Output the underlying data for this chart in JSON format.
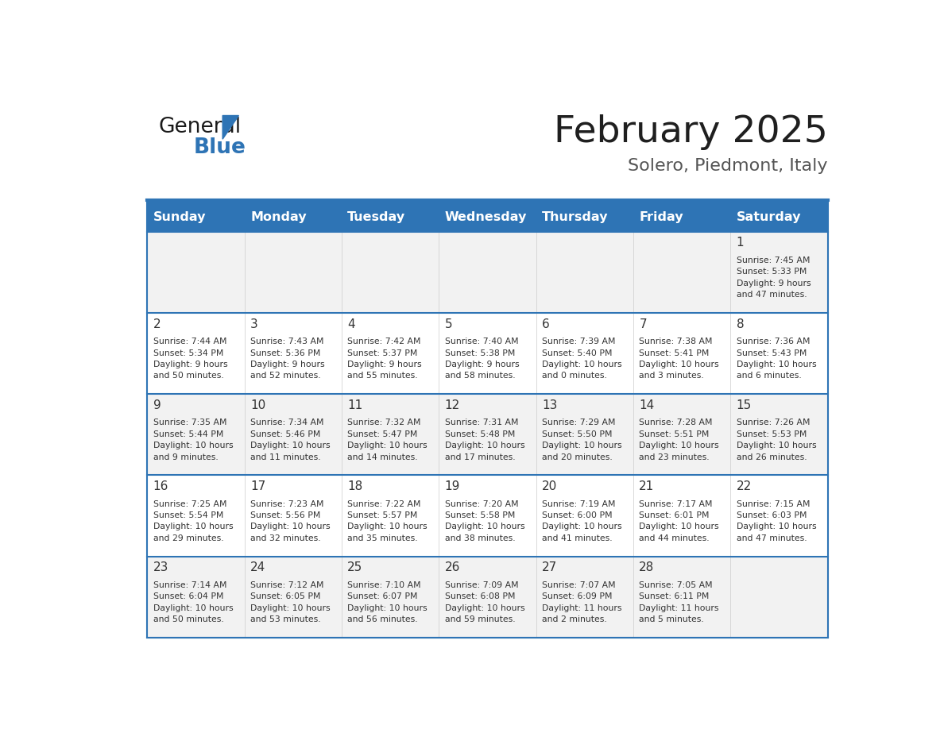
{
  "title": "February 2025",
  "subtitle": "Solero, Piedmont, Italy",
  "days_of_week": [
    "Sunday",
    "Monday",
    "Tuesday",
    "Wednesday",
    "Thursday",
    "Friday",
    "Saturday"
  ],
  "header_bg": "#2E74B5",
  "header_text": "#FFFFFF",
  "cell_bg_light": "#F2F2F2",
  "cell_bg_white": "#FFFFFF",
  "divider_color": "#2E74B5",
  "text_color": "#333333",
  "title_color": "#1F1F1F",
  "subtitle_color": "#555555",
  "calendar_data": [
    [
      {
        "day": null,
        "info": null
      },
      {
        "day": null,
        "info": null
      },
      {
        "day": null,
        "info": null
      },
      {
        "day": null,
        "info": null
      },
      {
        "day": null,
        "info": null
      },
      {
        "day": null,
        "info": null
      },
      {
        "day": 1,
        "info": "Sunrise: 7:45 AM\nSunset: 5:33 PM\nDaylight: 9 hours\nand 47 minutes."
      }
    ],
    [
      {
        "day": 2,
        "info": "Sunrise: 7:44 AM\nSunset: 5:34 PM\nDaylight: 9 hours\nand 50 minutes."
      },
      {
        "day": 3,
        "info": "Sunrise: 7:43 AM\nSunset: 5:36 PM\nDaylight: 9 hours\nand 52 minutes."
      },
      {
        "day": 4,
        "info": "Sunrise: 7:42 AM\nSunset: 5:37 PM\nDaylight: 9 hours\nand 55 minutes."
      },
      {
        "day": 5,
        "info": "Sunrise: 7:40 AM\nSunset: 5:38 PM\nDaylight: 9 hours\nand 58 minutes."
      },
      {
        "day": 6,
        "info": "Sunrise: 7:39 AM\nSunset: 5:40 PM\nDaylight: 10 hours\nand 0 minutes."
      },
      {
        "day": 7,
        "info": "Sunrise: 7:38 AM\nSunset: 5:41 PM\nDaylight: 10 hours\nand 3 minutes."
      },
      {
        "day": 8,
        "info": "Sunrise: 7:36 AM\nSunset: 5:43 PM\nDaylight: 10 hours\nand 6 minutes."
      }
    ],
    [
      {
        "day": 9,
        "info": "Sunrise: 7:35 AM\nSunset: 5:44 PM\nDaylight: 10 hours\nand 9 minutes."
      },
      {
        "day": 10,
        "info": "Sunrise: 7:34 AM\nSunset: 5:46 PM\nDaylight: 10 hours\nand 11 minutes."
      },
      {
        "day": 11,
        "info": "Sunrise: 7:32 AM\nSunset: 5:47 PM\nDaylight: 10 hours\nand 14 minutes."
      },
      {
        "day": 12,
        "info": "Sunrise: 7:31 AM\nSunset: 5:48 PM\nDaylight: 10 hours\nand 17 minutes."
      },
      {
        "day": 13,
        "info": "Sunrise: 7:29 AM\nSunset: 5:50 PM\nDaylight: 10 hours\nand 20 minutes."
      },
      {
        "day": 14,
        "info": "Sunrise: 7:28 AM\nSunset: 5:51 PM\nDaylight: 10 hours\nand 23 minutes."
      },
      {
        "day": 15,
        "info": "Sunrise: 7:26 AM\nSunset: 5:53 PM\nDaylight: 10 hours\nand 26 minutes."
      }
    ],
    [
      {
        "day": 16,
        "info": "Sunrise: 7:25 AM\nSunset: 5:54 PM\nDaylight: 10 hours\nand 29 minutes."
      },
      {
        "day": 17,
        "info": "Sunrise: 7:23 AM\nSunset: 5:56 PM\nDaylight: 10 hours\nand 32 minutes."
      },
      {
        "day": 18,
        "info": "Sunrise: 7:22 AM\nSunset: 5:57 PM\nDaylight: 10 hours\nand 35 minutes."
      },
      {
        "day": 19,
        "info": "Sunrise: 7:20 AM\nSunset: 5:58 PM\nDaylight: 10 hours\nand 38 minutes."
      },
      {
        "day": 20,
        "info": "Sunrise: 7:19 AM\nSunset: 6:00 PM\nDaylight: 10 hours\nand 41 minutes."
      },
      {
        "day": 21,
        "info": "Sunrise: 7:17 AM\nSunset: 6:01 PM\nDaylight: 10 hours\nand 44 minutes."
      },
      {
        "day": 22,
        "info": "Sunrise: 7:15 AM\nSunset: 6:03 PM\nDaylight: 10 hours\nand 47 minutes."
      }
    ],
    [
      {
        "day": 23,
        "info": "Sunrise: 7:14 AM\nSunset: 6:04 PM\nDaylight: 10 hours\nand 50 minutes."
      },
      {
        "day": 24,
        "info": "Sunrise: 7:12 AM\nSunset: 6:05 PM\nDaylight: 10 hours\nand 53 minutes."
      },
      {
        "day": 25,
        "info": "Sunrise: 7:10 AM\nSunset: 6:07 PM\nDaylight: 10 hours\nand 56 minutes."
      },
      {
        "day": 26,
        "info": "Sunrise: 7:09 AM\nSunset: 6:08 PM\nDaylight: 10 hours\nand 59 minutes."
      },
      {
        "day": 27,
        "info": "Sunrise: 7:07 AM\nSunset: 6:09 PM\nDaylight: 11 hours\nand 2 minutes."
      },
      {
        "day": 28,
        "info": "Sunrise: 7:05 AM\nSunset: 6:11 PM\nDaylight: 11 hours\nand 5 minutes."
      },
      {
        "day": null,
        "info": null
      }
    ]
  ],
  "logo_text_general": "General",
  "logo_text_blue": "Blue",
  "logo_color_general": "#1A1A1A",
  "logo_color_blue": "#2E74B5",
  "logo_triangle_color": "#2E74B5"
}
